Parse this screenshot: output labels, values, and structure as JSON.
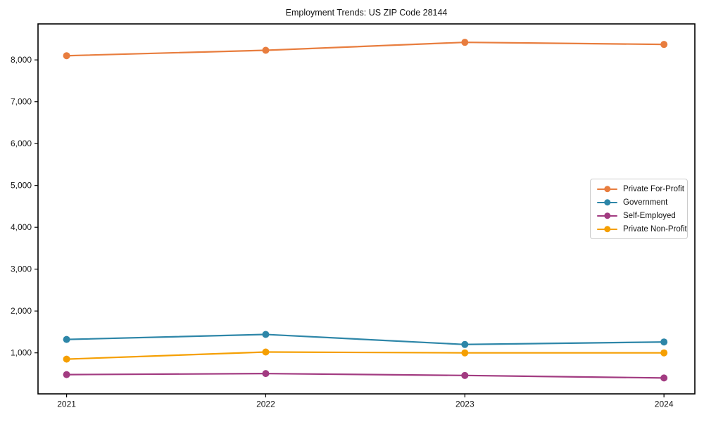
{
  "chart_data": {
    "type": "line",
    "title": "Employment Trends: US ZIP Code 28144",
    "xlabel": "",
    "ylabel": "",
    "x": [
      "2021",
      "2022",
      "2023",
      "2024"
    ],
    "series": [
      {
        "name": "Private For-Profit",
        "color": "#E87D3E",
        "values": [
          8100,
          8230,
          8420,
          8370
        ]
      },
      {
        "name": "Government",
        "color": "#2D86A8",
        "values": [
          1320,
          1440,
          1200,
          1260
        ]
      },
      {
        "name": "Self-Employed",
        "color": "#A23B81",
        "values": [
          480,
          505,
          460,
          400
        ]
      },
      {
        "name": "Private Non-Profit",
        "color": "#F59F02",
        "values": [
          850,
          1020,
          1000,
          1000
        ]
      }
    ],
    "ylim": [
      20,
      8860
    ],
    "yticks": [
      1000,
      2000,
      3000,
      4000,
      5000,
      6000,
      7000,
      8000
    ],
    "ytick_labels": [
      "1,000",
      "2,000",
      "3,000",
      "4,000",
      "5,000",
      "6,000",
      "7,000",
      "8,000"
    ],
    "grid": false,
    "marker": "circle",
    "legend_position": "center-right",
    "frame_color": "#000000",
    "background_color": "#ffffff"
  }
}
